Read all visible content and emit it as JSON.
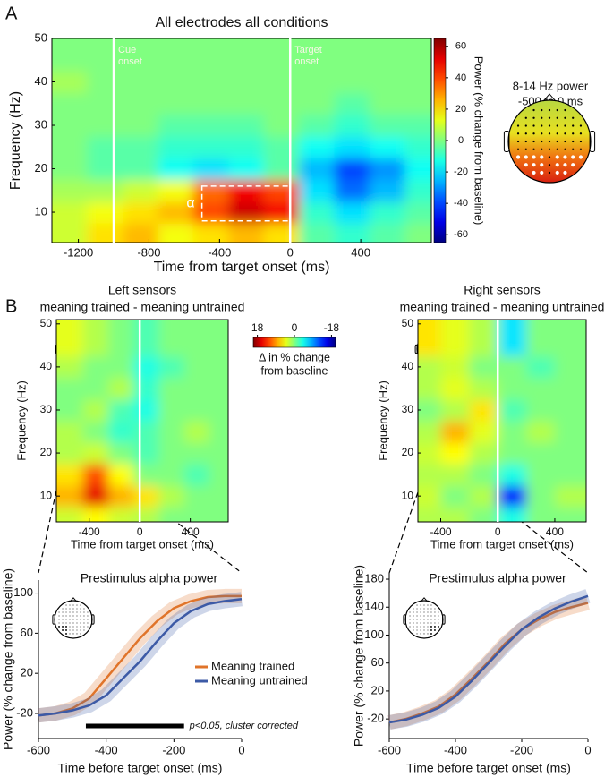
{
  "panel_labels": [
    "A",
    "B"
  ],
  "topo": {
    "title": "8-14 Hz power",
    "subtitle": "-500 to 0 ms"
  },
  "chart_data": [
    {
      "type": "heatmap",
      "title": "All electrodes all conditions",
      "xlabel": "Time from target onset (ms)",
      "ylabel": "Frequency (Hz)",
      "x": [
        -1250,
        -1050,
        -850,
        -650,
        -450,
        -250,
        -50,
        150,
        350,
        550,
        750
      ],
      "y": [
        5,
        10,
        15,
        20,
        25,
        30,
        35,
        40,
        45
      ],
      "z": [
        [
          10,
          20,
          25,
          15,
          20,
          25,
          20,
          -5,
          -10,
          -5,
          0
        ],
        [
          10,
          15,
          20,
          25,
          40,
          55,
          50,
          -10,
          -20,
          -10,
          -5
        ],
        [
          5,
          5,
          10,
          15,
          35,
          50,
          40,
          -20,
          -35,
          -25,
          -10
        ],
        [
          0,
          -5,
          -5,
          -15,
          -20,
          -15,
          -5,
          -25,
          -40,
          -30,
          -15
        ],
        [
          0,
          -5,
          -5,
          -10,
          -10,
          -10,
          -5,
          -15,
          -20,
          -15,
          -10
        ],
        [
          0,
          0,
          0,
          -5,
          -5,
          -5,
          0,
          -5,
          -10,
          -5,
          -5
        ],
        [
          0,
          0,
          0,
          0,
          0,
          0,
          0,
          0,
          -5,
          0,
          0
        ],
        [
          5,
          0,
          0,
          0,
          0,
          0,
          0,
          0,
          0,
          0,
          0
        ],
        [
          0,
          0,
          0,
          0,
          0,
          0,
          0,
          0,
          0,
          0,
          0
        ]
      ],
      "xlim": [
        -1350,
        800
      ],
      "ylim": [
        3,
        50
      ],
      "xticks": [
        -1200,
        -800,
        -400,
        0,
        400
      ],
      "yticks": [
        10,
        20,
        30,
        40,
        50
      ],
      "zlim": [
        -65,
        65
      ],
      "colorbar": {
        "label": [
          "Power (% change from baseline)"
        ],
        "ticks": [
          60,
          40,
          20,
          0,
          -20,
          -40,
          -60
        ]
      },
      "events": [
        {
          "label": [
            "Cue",
            "onset"
          ],
          "x": -1000
        },
        {
          "label": [
            "Target",
            "onset"
          ],
          "x": 0
        }
      ],
      "box": {
        "label": "α",
        "x": [
          -500,
          0
        ],
        "y": [
          8,
          16
        ]
      }
    },
    {
      "type": "heatmap",
      "title": "Left sensors",
      "subtitle": "meaning trained - meaning untrained",
      "xlabel": "Time from target onset (ms)",
      "ylabel": "Frequency (Hz)",
      "x": [
        -550,
        -350,
        -150,
        50,
        250,
        450,
        650
      ],
      "y": [
        5,
        10,
        15,
        20,
        25,
        30,
        35,
        40,
        45
      ],
      "z": [
        [
          3,
          5,
          3,
          2,
          0,
          0,
          0
        ],
        [
          8,
          16,
          8,
          6,
          2,
          0,
          0
        ],
        [
          6,
          12,
          5,
          0,
          0,
          -2,
          0
        ],
        [
          2,
          3,
          0,
          -2,
          0,
          0,
          0
        ],
        [
          2,
          0,
          -3,
          -2,
          0,
          2,
          0
        ],
        [
          0,
          2,
          -2,
          -4,
          0,
          0,
          0
        ],
        [
          0,
          0,
          2,
          -3,
          0,
          0,
          0
        ],
        [
          2,
          0,
          0,
          -4,
          -2,
          0,
          0
        ],
        [
          4,
          2,
          0,
          -2,
          0,
          0,
          0
        ]
      ],
      "xlim": [
        -660,
        700
      ],
      "ylim": [
        4,
        51
      ],
      "xticks": [
        -400,
        0,
        400
      ],
      "yticks": [
        10,
        20,
        30,
        40,
        50
      ],
      "zlim": [
        -20,
        20
      ],
      "colorbar": {
        "label": [
          "Δ in % change",
          "from baseline"
        ],
        "ticks": [
          18,
          0,
          -18
        ]
      },
      "events": [
        {
          "x": 0
        }
      ]
    },
    {
      "type": "heatmap",
      "title": "Right sensors",
      "subtitle": "meaning trained - meaning untrained",
      "xlabel": "Time from target onset (ms)",
      "ylabel": "Frequency (Hz)",
      "x": [
        -500,
        -300,
        -100,
        100,
        300,
        500
      ],
      "y": [
        5,
        10,
        15,
        20,
        25,
        30,
        35,
        40,
        45
      ],
      "z": [
        [
          2,
          2,
          0,
          -4,
          0,
          0
        ],
        [
          3,
          0,
          2,
          -15,
          0,
          2
        ],
        [
          2,
          2,
          0,
          -4,
          0,
          0
        ],
        [
          3,
          5,
          2,
          0,
          0,
          0
        ],
        [
          2,
          8,
          4,
          0,
          2,
          0
        ],
        [
          0,
          2,
          6,
          -2,
          0,
          0
        ],
        [
          2,
          4,
          2,
          0,
          0,
          0
        ],
        [
          2,
          3,
          0,
          0,
          -2,
          0
        ],
        [
          6,
          4,
          2,
          -6,
          0,
          0
        ]
      ],
      "xlim": [
        -560,
        620
      ],
      "ylim": [
        4,
        51
      ],
      "xticks": [
        -400,
        0,
        400
      ],
      "yticks": [
        10,
        20,
        30,
        40,
        50
      ],
      "zlim": [
        -20,
        20
      ],
      "events": [
        {
          "x": 0
        }
      ]
    },
    {
      "type": "line",
      "title": "Prestimulus alpha power",
      "xlabel": "Time before target onset (ms)",
      "ylabel": "Power (% change from baseline)",
      "x": [
        -600,
        -550,
        -500,
        -450,
        -400,
        -350,
        -300,
        -250,
        -200,
        -150,
        -100,
        -50,
        0
      ],
      "series": [
        {
          "name": "Meaning trained",
          "color": "#e0742a",
          "values": [
            -22,
            -20,
            -15,
            -5,
            15,
            35,
            55,
            72,
            85,
            92,
            96,
            97,
            97
          ]
        },
        {
          "name": "Meaning untrained",
          "color": "#3c5aa6",
          "values": [
            -22,
            -20,
            -17,
            -12,
            -2,
            15,
            32,
            52,
            70,
            82,
            89,
            92,
            94
          ]
        }
      ],
      "xlim": [
        -600,
        0
      ],
      "ylim": [
        -45,
        113
      ],
      "xticks": [
        -600,
        -400,
        -200,
        0
      ],
      "yticks": [
        -20,
        20,
        60,
        100
      ],
      "legend": true,
      "sig": {
        "label": "p<0.05, cluster corrected",
        "x": [
          -460,
          -170
        ]
      }
    },
    {
      "type": "line",
      "title": "Prestimulus alpha power",
      "xlabel": "Time before target onset (ms)",
      "ylabel": "Power (% change from baseline)",
      "x": [
        -600,
        -550,
        -500,
        -450,
        -400,
        -350,
        -300,
        -250,
        -200,
        -150,
        -100,
        -50,
        0
      ],
      "series": [
        {
          "name": "Meaning trained",
          "color": "#e0742a",
          "values": [
            -25,
            -20,
            -12,
            -2,
            15,
            38,
            62,
            88,
            108,
            122,
            133,
            140,
            146
          ]
        },
        {
          "name": "Meaning untrained",
          "color": "#3c5aa6",
          "values": [
            -25,
            -21,
            -14,
            -4,
            12,
            35,
            60,
            85,
            108,
            125,
            138,
            148,
            156
          ]
        }
      ],
      "xlim": [
        -600,
        0
      ],
      "ylim": [
        -48,
        189
      ],
      "xticks": [
        -600,
        -400,
        -200,
        0
      ],
      "yticks": [
        -20,
        20,
        60,
        100,
        140,
        180
      ],
      "legend": false
    }
  ]
}
